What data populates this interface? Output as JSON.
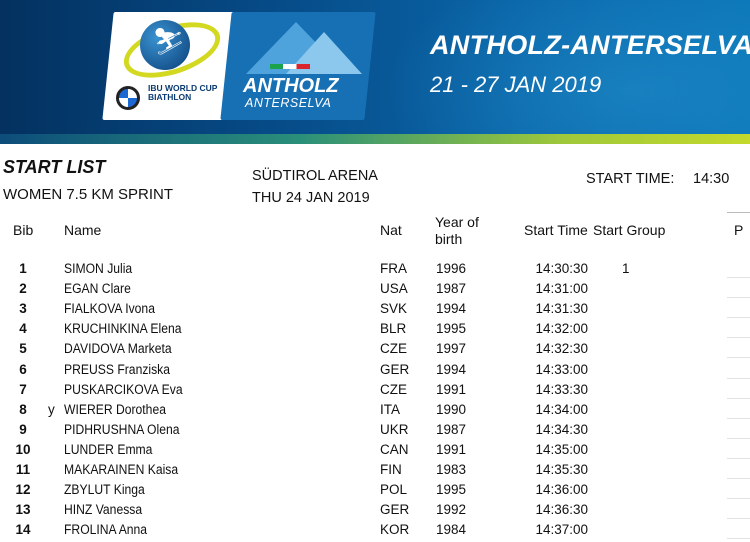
{
  "header": {
    "sponsor": "BMW",
    "series_logo": "IBU WORLD CUP BIATHLON",
    "venue_logo_name": "ANTHOLZ",
    "venue_logo_sub": "ANTERSELVA",
    "event_title": "ANTHOLZ-ANTERSELVA",
    "event_dates": "21 - 27 JAN 2019"
  },
  "doc": {
    "title": "START LIST",
    "race": "WOMEN 7.5 KM SPRINT",
    "venue": "SÜDTIROL ARENA",
    "date": "THU 24 JAN 2019",
    "start_time_label": "START TIME:",
    "start_time_value": "14:30"
  },
  "columns": {
    "bib": "Bib",
    "name": "Name",
    "nat": "Nat",
    "yob_line1": "Year of",
    "yob_line2": "birth",
    "start_time": "Start Time",
    "start_group": "Start Group",
    "p": "P"
  },
  "rows": [
    {
      "bib": "1",
      "mark": "",
      "name": "SIMON Julia",
      "nat": "FRA",
      "yob": "1996",
      "time": "14:30:30",
      "group": "1"
    },
    {
      "bib": "2",
      "mark": "",
      "name": "EGAN Clare",
      "nat": "USA",
      "yob": "1987",
      "time": "14:31:00",
      "group": ""
    },
    {
      "bib": "3",
      "mark": "",
      "name": "FIALKOVA Ivona",
      "nat": "SVK",
      "yob": "1994",
      "time": "14:31:30",
      "group": ""
    },
    {
      "bib": "4",
      "mark": "",
      "name": "KRUCHINKINA Elena",
      "nat": "BLR",
      "yob": "1995",
      "time": "14:32:00",
      "group": ""
    },
    {
      "bib": "5",
      "mark": "",
      "name": "DAVIDOVA Marketa",
      "nat": "CZE",
      "yob": "1997",
      "time": "14:32:30",
      "group": ""
    },
    {
      "bib": "6",
      "mark": "",
      "name": "PREUSS Franziska",
      "nat": "GER",
      "yob": "1994",
      "time": "14:33:00",
      "group": ""
    },
    {
      "bib": "7",
      "mark": "",
      "name": "PUSKARCIKOVA Eva",
      "nat": "CZE",
      "yob": "1991",
      "time": "14:33:30",
      "group": ""
    },
    {
      "bib": "8",
      "mark": "y",
      "name": "WIERER Dorothea",
      "nat": "ITA",
      "yob": "1990",
      "time": "14:34:00",
      "group": ""
    },
    {
      "bib": "9",
      "mark": "",
      "name": "PIDHRUSHNA Olena",
      "nat": "UKR",
      "yob": "1987",
      "time": "14:34:30",
      "group": ""
    },
    {
      "bib": "10",
      "mark": "",
      "name": "LUNDER Emma",
      "nat": "CAN",
      "yob": "1991",
      "time": "14:35:00",
      "group": ""
    },
    {
      "bib": "11",
      "mark": "",
      "name": "MAKARAINEN Kaisa",
      "nat": "FIN",
      "yob": "1983",
      "time": "14:35:30",
      "group": ""
    },
    {
      "bib": "12",
      "mark": "",
      "name": "ZBYLUT Kinga",
      "nat": "POL",
      "yob": "1995",
      "time": "14:36:00",
      "group": ""
    },
    {
      "bib": "13",
      "mark": "",
      "name": "HINZ Vanessa",
      "nat": "GER",
      "yob": "1992",
      "time": "14:36:30",
      "group": ""
    },
    {
      "bib": "14",
      "mark": "",
      "name": "FROLINA Anna",
      "nat": "KOR",
      "yob": "1984",
      "time": "14:37:00",
      "group": ""
    }
  ]
}
